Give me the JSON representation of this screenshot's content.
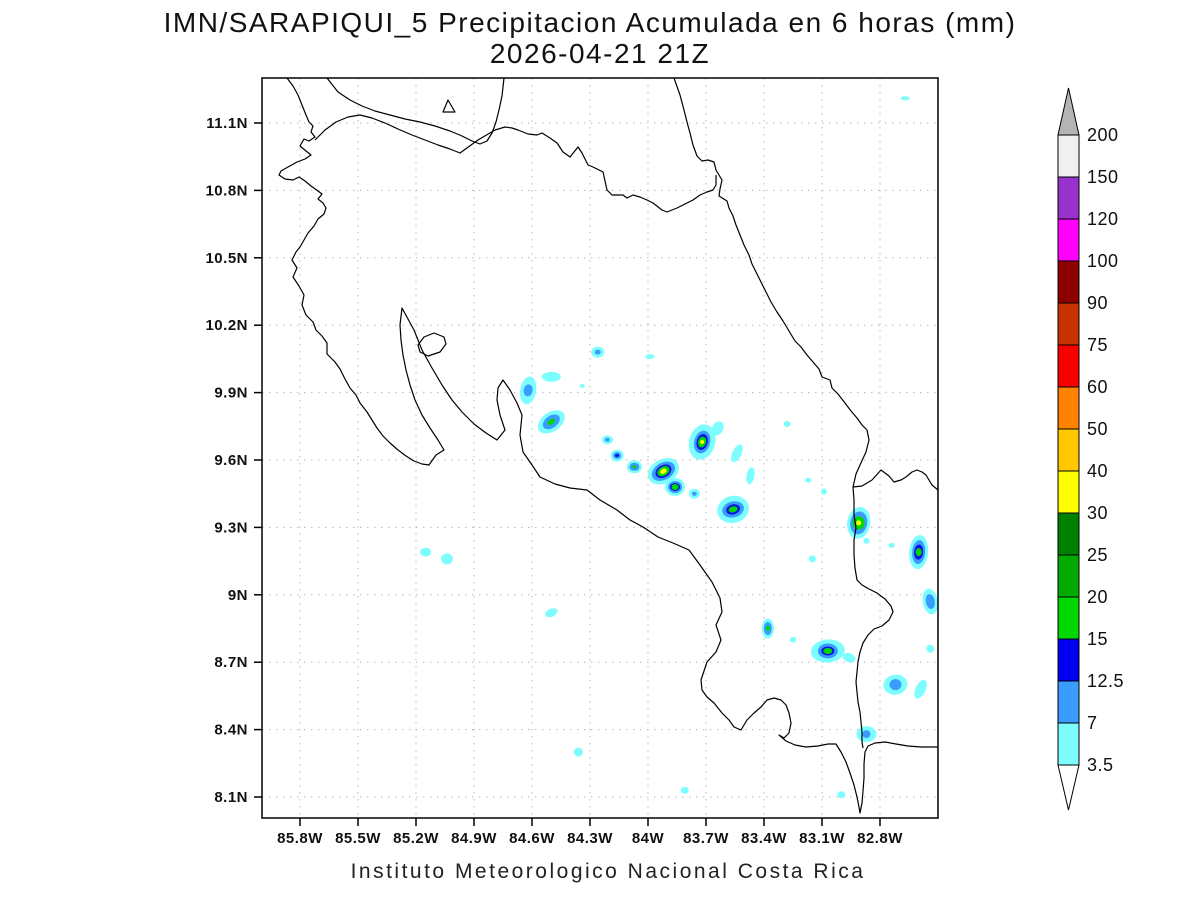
{
  "title": {
    "line1": "IMN/SARAPIQUI_5 Precipitacion Acumulada en 6 horas (mm)",
    "line2": "2026-04-21 21Z"
  },
  "footer": "Instituto Meteorologico Nacional Costa Rica",
  "axes": {
    "lat_labels": [
      "11.1N",
      "10.8N",
      "10.5N",
      "10.2N",
      "9.9N",
      "9.6N",
      "9.3N",
      "9N",
      "8.7N",
      "8.4N",
      "8.1N"
    ],
    "lon_labels": [
      "85.8W",
      "85.5W",
      "85.2W",
      "84.9W",
      "84.6W",
      "84.3W",
      "84W",
      "83.7W",
      "83.4W",
      "83.1W",
      "82.8W"
    ],
    "grid": "dotted"
  },
  "chart_data": {
    "type": "map-contour",
    "title": "IMN/SARAPIQUI_5 Precipitacion Acumulada en 6 horas (mm)",
    "valid_time": "2026-04-21 21Z",
    "region": "Costa Rica",
    "units": "mm",
    "lon_range_deg_west": [
      86.0,
      82.5
    ],
    "lat_range_deg_north": [
      8.0,
      11.3
    ],
    "levels": [
      3.5,
      7,
      12.5,
      15,
      20,
      25,
      30,
      40,
      50,
      60,
      75,
      90,
      100,
      120,
      150,
      200
    ],
    "level_labels": [
      "3.5",
      "7",
      "12.5",
      "15",
      "20",
      "25",
      "30",
      "40",
      "50",
      "60",
      "75",
      "90",
      "100",
      "120",
      "150",
      "200"
    ],
    "segment_colors": [
      "#7dfdfe",
      "#3a9cff",
      "#0000f0",
      "#00d800",
      "#00aa00",
      "#008000",
      "#ffff00",
      "#ffc800",
      "#ff8200",
      "#f80000",
      "#c83200",
      "#8e0000",
      "#ff00ff",
      "#9932cc",
      "#f0f0f0"
    ],
    "over_color": "#b4b4b4",
    "under_color": "#ffffff",
    "cell_layer_colors": {
      "3.5": "#7dfdfe",
      "7": "#3a9cff",
      "12.5": "#0010e8",
      "15": "#00d800",
      "30": "#ffff00"
    },
    "cells_format": "[lon_deg_west, lat_deg_north, layers:[level_mm, width_px, height_px, rotation_deg] outer-to-inner]",
    "cells": [
      [
        84.26,
        10.08,
        [
          [
            "3.5",
            13,
            11,
            0
          ],
          [
            "7",
            6,
            5,
            0
          ]
        ]
      ],
      [
        84.62,
        9.91,
        [
          [
            "3.5",
            16,
            28,
            10
          ],
          [
            "7",
            9,
            12,
            10
          ]
        ]
      ],
      [
        84.5,
        9.97,
        [
          [
            "3.5",
            19,
            10,
            0
          ]
        ]
      ],
      [
        84.34,
        9.93,
        [
          [
            "3.5",
            5,
            4,
            0
          ]
        ]
      ],
      [
        84.5,
        9.77,
        [
          [
            "3.5",
            30,
            19,
            -35
          ],
          [
            "7",
            19,
            12,
            -35
          ],
          [
            "15",
            8,
            5,
            -35
          ]
        ]
      ],
      [
        84.21,
        9.69,
        [
          [
            "3.5",
            11,
            9,
            0
          ],
          [
            "7",
            5,
            4,
            0
          ]
        ]
      ],
      [
        84.16,
        9.62,
        [
          [
            "3.5",
            13,
            12,
            0
          ],
          [
            "7",
            8,
            7,
            0
          ],
          [
            "12.5",
            4,
            3,
            0
          ]
        ]
      ],
      [
        84.07,
        9.57,
        [
          [
            "3.5",
            15,
            13,
            0
          ],
          [
            "7",
            10,
            8,
            0
          ],
          [
            "15",
            4,
            3,
            0
          ]
        ]
      ],
      [
        83.92,
        9.55,
        [
          [
            "3.5",
            33,
            24,
            -30
          ],
          [
            "7",
            25,
            17,
            -30
          ],
          [
            "12.5",
            17,
            12,
            -30
          ],
          [
            "15",
            13,
            9,
            -30
          ],
          [
            "30",
            7,
            5,
            -30
          ]
        ]
      ],
      [
        83.86,
        9.48,
        [
          [
            "3.5",
            20,
            18,
            0
          ],
          [
            "7",
            14,
            12,
            0
          ],
          [
            "12.5",
            10,
            8,
            0
          ],
          [
            "15",
            7,
            6,
            0
          ]
        ]
      ],
      [
        83.76,
        9.45,
        [
          [
            "3.5",
            11,
            10,
            0
          ],
          [
            "7",
            5,
            4,
            0
          ]
        ]
      ],
      [
        83.72,
        9.68,
        [
          [
            "3.5",
            26,
            36,
            15
          ],
          [
            "7",
            16,
            23,
            15
          ],
          [
            "12.5",
            11,
            16,
            15
          ],
          [
            "15",
            8,
            11,
            15
          ],
          [
            "30",
            4,
            4,
            0
          ]
        ]
      ],
      [
        83.64,
        9.74,
        [
          [
            "3.5",
            11,
            15,
            30
          ]
        ]
      ],
      [
        83.54,
        9.63,
        [
          [
            "3.5",
            9,
            19,
            25
          ]
        ]
      ],
      [
        83.47,
        9.53,
        [
          [
            "3.5",
            8,
            17,
            10
          ]
        ]
      ],
      [
        83.56,
        9.38,
        [
          [
            "3.5",
            32,
            27,
            -15
          ],
          [
            "7",
            22,
            16,
            -15
          ],
          [
            "12.5",
            14,
            10,
            -15
          ],
          [
            "15",
            9,
            6,
            -15
          ]
        ]
      ],
      [
        83.28,
        9.76,
        [
          [
            "3.5",
            7,
            6,
            0
          ]
        ]
      ],
      [
        82.91,
        9.32,
        [
          [
            "3.5",
            23,
            32,
            10
          ],
          [
            "7",
            17,
            23,
            10
          ],
          [
            "15",
            12,
            13,
            0
          ],
          [
            "30",
            5,
            5,
            0
          ]
        ]
      ],
      [
        82.6,
        9.19,
        [
          [
            "3.5",
            19,
            34,
            5
          ],
          [
            "7",
            13,
            24,
            5
          ],
          [
            "12.5",
            9,
            15,
            5
          ],
          [
            "15",
            6,
            8,
            0
          ]
        ]
      ],
      [
        82.54,
        8.97,
        [
          [
            "3.5",
            15,
            26,
            -10
          ],
          [
            "7",
            9,
            15,
            -10
          ]
        ]
      ],
      [
        83.09,
        9.46,
        [
          [
            "3.5",
            6,
            6,
            0
          ]
        ]
      ],
      [
        83.15,
        9.16,
        [
          [
            "3.5",
            7,
            7,
            0
          ]
        ]
      ],
      [
        83.07,
        8.75,
        [
          [
            "3.5",
            34,
            23,
            -5
          ],
          [
            "7",
            20,
            15,
            0
          ],
          [
            "12.5",
            13,
            9,
            0
          ],
          [
            "15",
            9,
            6,
            0
          ]
        ]
      ],
      [
        82.96,
        8.72,
        [
          [
            "3.5",
            13,
            9,
            20
          ]
        ]
      ],
      [
        82.87,
        9.24,
        [
          [
            "3.5",
            6,
            6,
            0
          ]
        ]
      ],
      [
        82.74,
        9.22,
        [
          [
            "3.5",
            6,
            5,
            0
          ]
        ]
      ],
      [
        82.54,
        8.76,
        [
          [
            "3.5",
            8,
            8,
            0
          ]
        ]
      ],
      [
        83.38,
        8.85,
        [
          [
            "3.5",
            12,
            20,
            0
          ],
          [
            "7",
            8,
            13,
            0
          ],
          [
            "15",
            4,
            5,
            0
          ]
        ]
      ],
      [
        83.25,
        8.8,
        [
          [
            "3.5",
            6,
            6,
            0
          ]
        ]
      ],
      [
        82.72,
        8.6,
        [
          [
            "3.5",
            24,
            20,
            -10
          ],
          [
            "7",
            12,
            11,
            0
          ]
        ]
      ],
      [
        82.59,
        8.58,
        [
          [
            "3.5",
            10,
            20,
            25
          ]
        ]
      ],
      [
        82.87,
        8.38,
        [
          [
            "3.5",
            20,
            16,
            0
          ],
          [
            "7",
            8,
            8,
            0
          ]
        ]
      ],
      [
        83.0,
        8.11,
        [
          [
            "3.5",
            8,
            7,
            0
          ]
        ]
      ],
      [
        85.15,
        9.19,
        [
          [
            "3.5",
            11,
            9,
            0
          ]
        ]
      ],
      [
        85.04,
        9.16,
        [
          [
            "3.5",
            12,
            11,
            0
          ]
        ]
      ],
      [
        84.5,
        8.92,
        [
          [
            "3.5",
            13,
            8,
            -25
          ]
        ]
      ],
      [
        84.36,
        8.3,
        [
          [
            "3.5",
            9,
            9,
            0
          ]
        ]
      ],
      [
        83.99,
        10.06,
        [
          [
            "3.5",
            9,
            5,
            0
          ]
        ]
      ],
      [
        82.67,
        11.21,
        [
          [
            "3.5",
            9,
            4,
            0
          ]
        ]
      ],
      [
        83.17,
        9.51,
        [
          [
            "3.5",
            6,
            5,
            0
          ]
        ]
      ],
      [
        83.81,
        8.13,
        [
          [
            "3.5",
            8,
            7,
            0
          ]
        ]
      ]
    ]
  },
  "colorbar": {
    "labels_top_to_bottom": [
      "200",
      "150",
      "120",
      "100",
      "90",
      "75",
      "60",
      "50",
      "40",
      "30",
      "25",
      "20",
      "15",
      "12.5",
      "7",
      "3.5"
    ]
  }
}
